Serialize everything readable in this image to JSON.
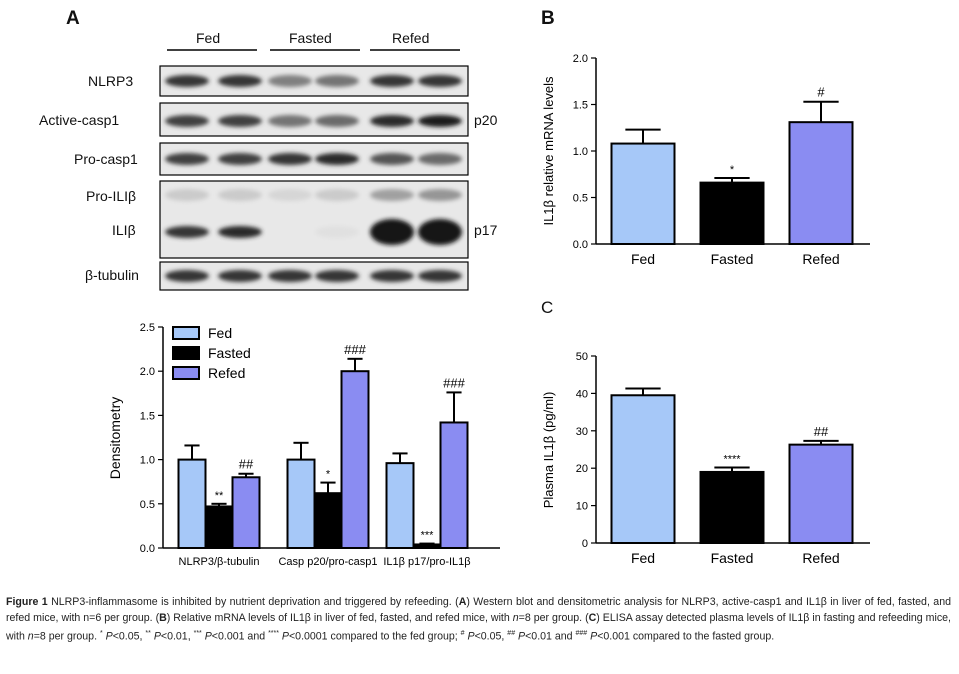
{
  "panel_labels": {
    "a": "A",
    "b": "B",
    "c": "C"
  },
  "blot": {
    "groups": [
      "Fed",
      "Fasted",
      "Refed"
    ],
    "rows": [
      "NLRP3",
      "Active-casp1",
      "Pro-casp1",
      "Pro-ILIβ",
      "ILIβ",
      "β-tubulin"
    ],
    "right_labels": [
      "p20",
      "p17"
    ],
    "intensity": {
      "NLRP3": [
        0.85,
        0.85,
        0.5,
        0.55,
        0.85,
        0.85
      ],
      "Active-casp1": [
        0.8,
        0.8,
        0.55,
        0.6,
        0.9,
        0.95
      ],
      "Pro-casp1": [
        0.8,
        0.8,
        0.85,
        0.9,
        0.7,
        0.6
      ],
      "Pro-ILIβ": [
        0.15,
        0.15,
        0.1,
        0.15,
        0.35,
        0.4
      ],
      "ILIβ": [
        0.85,
        0.9,
        0.0,
        0.05,
        1.0,
        1.0
      ],
      "β-tubulin": [
        0.85,
        0.85,
        0.85,
        0.85,
        0.85,
        0.85
      ]
    }
  },
  "colors": {
    "Fed": "#a6c8f8",
    "Fasted": "#000000",
    "Refed": "#8a8cf2"
  },
  "chart_data": [
    {
      "id": "A",
      "type": "bar",
      "ylabel": "Densitometry",
      "ylim": [
        0,
        2.5
      ],
      "yticks": [
        "0.0",
        "0.5",
        "1.0",
        "1.5",
        "2.0",
        "2.5"
      ],
      "categories": [
        "NLRP3/β-tubulin",
        "Casp p20/pro-casp1",
        "IL1β p17/pro-IL1β"
      ],
      "legend": [
        "Fed",
        "Fasted",
        "Refed"
      ],
      "legend_position": "top-left",
      "series": [
        {
          "name": "Fed",
          "values": [
            1.0,
            1.0,
            0.96
          ],
          "errors": [
            0.16,
            0.19,
            0.11
          ],
          "annotations": [
            "",
            "",
            ""
          ]
        },
        {
          "name": "Fasted",
          "values": [
            0.47,
            0.62,
            0.04
          ],
          "errors": [
            0.03,
            0.12,
            0.01
          ],
          "annotations": [
            "**",
            "*",
            "***"
          ]
        },
        {
          "name": "Refed",
          "values": [
            0.8,
            2.0,
            1.42
          ],
          "errors": [
            0.04,
            0.14,
            0.34
          ],
          "annotations": [
            "##",
            "###",
            "###"
          ]
        }
      ]
    },
    {
      "id": "B",
      "type": "bar",
      "ylabel": "IL1β relative mRNA levels",
      "ylim": [
        0,
        2.0
      ],
      "yticks": [
        "0.0",
        "0.5",
        "1.0",
        "1.5",
        "2.0"
      ],
      "categories": [
        "Fed",
        "Fasted",
        "Refed"
      ],
      "values": [
        1.08,
        0.66,
        1.31
      ],
      "errors": [
        0.15,
        0.05,
        0.22
      ],
      "annotations": [
        "",
        "*",
        "#"
      ]
    },
    {
      "id": "C",
      "type": "bar",
      "ylabel": "Plasma IL1β (pg/ml)",
      "ylim": [
        0,
        50
      ],
      "yticks": [
        "0",
        "10",
        "20",
        "30",
        "40",
        "50"
      ],
      "categories": [
        "Fed",
        "Fasted",
        "Refed"
      ],
      "values": [
        39.5,
        19.0,
        26.3
      ],
      "errors": [
        1.8,
        1.2,
        1.0
      ],
      "annotations": [
        "",
        "****",
        "##"
      ]
    }
  ],
  "caption": [
    {
      "t": "Figure 1 ",
      "b": true
    },
    {
      "t": "NLRP3-inflammasome is inhibited by nutrient deprivation and triggered by refeeding. ("
    },
    {
      "t": "A",
      "b": true
    },
    {
      "t": ") Western blot and densitometric analysis for NLRP3, active-casp1 and IL1β in liver of fed, fasted, and refed mice, with n=6 per group. ("
    },
    {
      "t": "B",
      "b": true
    },
    {
      "t": ") Relative mRNA levels of IL1β in liver of fed, fasted, and refed mice, with "
    },
    {
      "t": "n",
      "i": true
    },
    {
      "t": "=8 per group. ("
    },
    {
      "t": "C",
      "b": true
    },
    {
      "t": ") ELISA assay detected plasma levels of IL1β in fasting and refeeding mice, with "
    },
    {
      "t": "n",
      "i": true
    },
    {
      "t": "=8 per group. "
    },
    {
      "t": "*",
      "sup": true
    },
    {
      "t": " P",
      "i": true
    },
    {
      "t": "<0.05, "
    },
    {
      "t": "**",
      "sup": true
    },
    {
      "t": " P",
      "i": true
    },
    {
      "t": "<0.01, "
    },
    {
      "t": "***",
      "sup": true
    },
    {
      "t": " P",
      "i": true
    },
    {
      "t": "<0.001 and "
    },
    {
      "t": "****",
      "sup": true
    },
    {
      "t": " P",
      "i": true
    },
    {
      "t": "<0.0001 compared to the fed group; "
    },
    {
      "t": "#",
      "sup": true
    },
    {
      "t": " P",
      "i": true
    },
    {
      "t": "<0.05, "
    },
    {
      "t": "##",
      "sup": true
    },
    {
      "t": " P",
      "i": true
    },
    {
      "t": "<0.01 and "
    },
    {
      "t": "###",
      "sup": true
    },
    {
      "t": " P",
      "i": true
    },
    {
      "t": "<0.001 compared to the fasted group."
    }
  ]
}
